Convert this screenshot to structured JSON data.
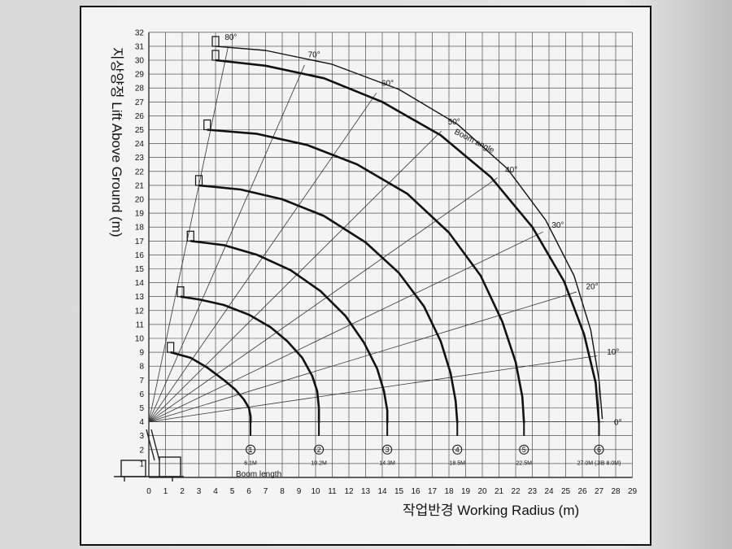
{
  "chart_data": {
    "type": "line",
    "title": "",
    "xlabel": "작업반경 Working Radius (m)",
    "ylabel": "지상양정 Lift Above Ground (m)",
    "xlim": [
      0,
      29
    ],
    "ylim": [
      0,
      32
    ],
    "x_ticks": [
      0,
      1,
      2,
      3,
      4,
      5,
      6,
      7,
      8,
      9,
      10,
      11,
      12,
      13,
      14,
      15,
      16,
      17,
      18,
      19,
      20,
      21,
      22,
      23,
      24,
      25,
      26,
      27,
      28,
      29
    ],
    "y_ticks": [
      1,
      2,
      3,
      4,
      5,
      6,
      7,
      8,
      9,
      10,
      11,
      12,
      13,
      14,
      15,
      16,
      17,
      18,
      19,
      20,
      21,
      22,
      23,
      24,
      25,
      26,
      27,
      28,
      29,
      30,
      31,
      32
    ],
    "grid": true,
    "pivot": [
      0,
      4
    ],
    "boom_angles": [
      "0°",
      "10°",
      "20°",
      "30°",
      "40°",
      "50°",
      "60°",
      "70°",
      "80°"
    ],
    "boom_angle_title": "Boom angle",
    "boom_length_title": "Boom length",
    "series": [
      {
        "marker": "1",
        "label": "6.1M",
        "x": [
          1.3,
          2.5,
          3.5,
          4.5,
          5.2,
          5.7,
          6.0,
          6.1,
          6.1
        ],
        "y": [
          9.0,
          8.6,
          7.9,
          7.0,
          6.3,
          5.6,
          5.0,
          4.4,
          3.9
        ]
      },
      {
        "marker": "2",
        "label": "10.2M",
        "x": [
          1.9,
          3.0,
          4.5,
          6.0,
          7.3,
          8.3,
          9.2,
          9.8,
          10.1,
          10.2,
          10.2
        ],
        "y": [
          13.0,
          12.8,
          12.4,
          11.7,
          10.8,
          9.8,
          8.6,
          7.3,
          6.2,
          5.0,
          3.9
        ]
      },
      {
        "marker": "3",
        "label": "14.3M",
        "x": [
          2.5,
          4.5,
          6.5,
          8.5,
          10.3,
          11.8,
          12.9,
          13.7,
          14.1,
          14.3,
          14.3
        ],
        "y": [
          17.0,
          16.7,
          16.0,
          14.9,
          13.4,
          11.6,
          9.7,
          7.8,
          6.2,
          4.8,
          3.9
        ]
      },
      {
        "marker": "4",
        "label": "18.5M",
        "x": [
          3.0,
          5.5,
          8.0,
          10.5,
          13.0,
          15.0,
          16.5,
          17.5,
          18.1,
          18.4,
          18.5
        ],
        "y": [
          21.0,
          20.7,
          20.0,
          18.8,
          16.9,
          14.7,
          12.3,
          9.8,
          7.5,
          5.5,
          3.9
        ]
      },
      {
        "marker": "5",
        "label": "22.5M",
        "x": [
          3.5,
          6.5,
          9.5,
          12.5,
          15.5,
          18.0,
          19.9,
          21.2,
          22.0,
          22.4,
          22.5
        ],
        "y": [
          25.0,
          24.7,
          23.9,
          22.5,
          20.4,
          17.6,
          14.5,
          11.2,
          8.3,
          5.8,
          3.9
        ]
      },
      {
        "marker": "6",
        "label": "27.0M (JIB 8.0M)",
        "x": [
          4.0,
          7.0,
          10.5,
          14.0,
          17.5,
          20.5,
          23.0,
          24.9,
          26.1,
          26.8,
          27.0
        ],
        "y": [
          30.0,
          29.6,
          28.7,
          27.0,
          24.6,
          21.6,
          18.0,
          14.1,
          10.3,
          6.8,
          3.9
        ]
      },
      {
        "marker": "",
        "label": "",
        "x": [
          4.0,
          7.0,
          11.0,
          15.0,
          18.5,
          21.5,
          23.8,
          25.5,
          26.5,
          27.0,
          27.2
        ],
        "y": [
          31.0,
          30.7,
          29.7,
          27.9,
          25.4,
          22.2,
          18.5,
          14.5,
          10.6,
          7.0,
          4.2
        ]
      }
    ]
  }
}
